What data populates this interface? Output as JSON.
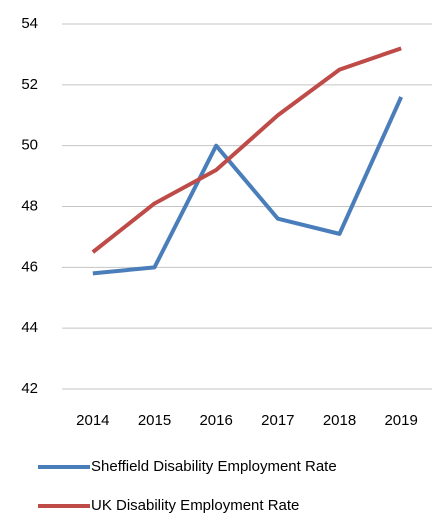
{
  "chart_data": {
    "type": "line",
    "categories": [
      "2014",
      "2015",
      "2016",
      "2017",
      "2018",
      "2019"
    ],
    "series": [
      {
        "name": "Sheffield Disability Employment Rate",
        "color": "#4a7ebb",
        "values": [
          45.8,
          46.0,
          50.0,
          47.6,
          47.1,
          51.6
        ]
      },
      {
        "name": "UK Disability Employment Rate",
        "color": "#be4b48",
        "values": [
          46.5,
          48.1,
          49.2,
          51.0,
          52.5,
          53.2
        ]
      }
    ],
    "ylim": [
      42,
      54
    ],
    "yticks": [
      42,
      44,
      46,
      48,
      50,
      52,
      54
    ],
    "grid": true,
    "legend": "bottom"
  }
}
